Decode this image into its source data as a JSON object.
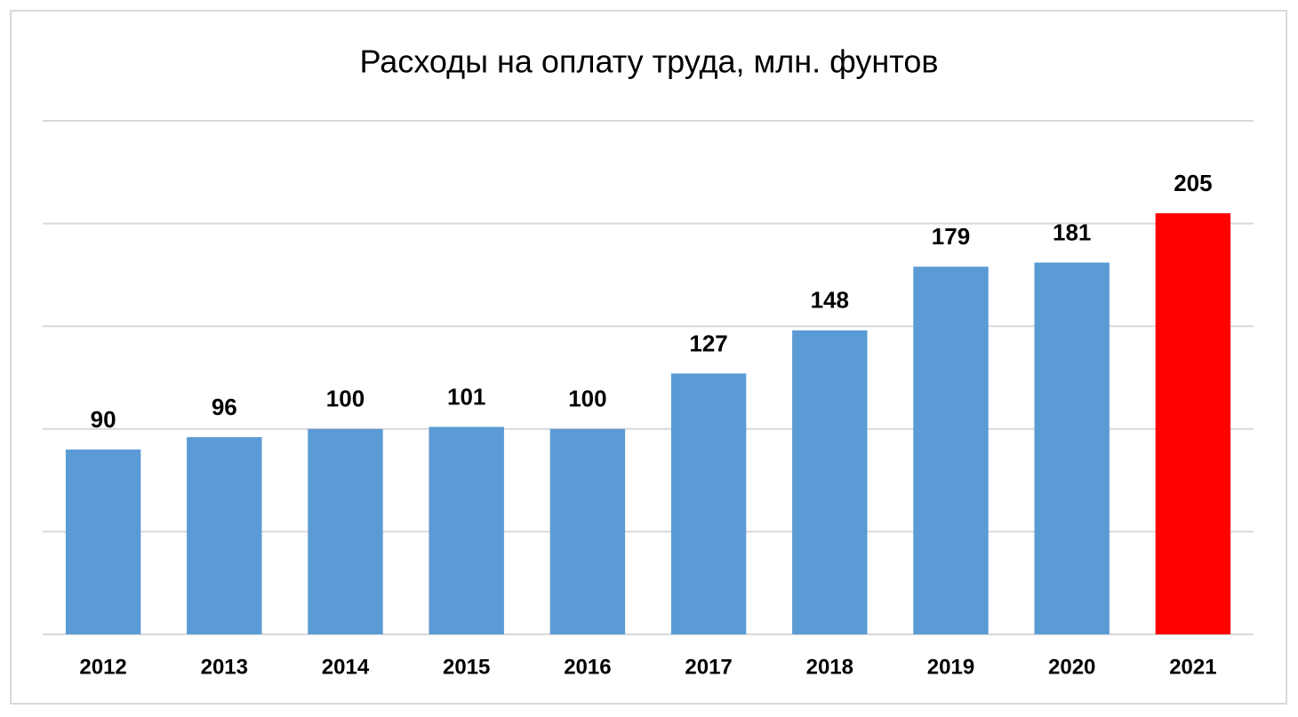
{
  "chart_data": {
    "type": "bar",
    "title": "Расходы на оплату труда, млн. фунтов",
    "categories": [
      "2012",
      "2013",
      "2014",
      "2015",
      "2016",
      "2017",
      "2018",
      "2019",
      "2020",
      "2021"
    ],
    "values": [
      90,
      96,
      100,
      101,
      100,
      127,
      148,
      179,
      181,
      205
    ],
    "colors": [
      "#5b9bd5",
      "#5b9bd5",
      "#5b9bd5",
      "#5b9bd5",
      "#5b9bd5",
      "#5b9bd5",
      "#5b9bd5",
      "#5b9bd5",
      "#5b9bd5",
      "#ff0000"
    ],
    "ylim": [
      0,
      250
    ],
    "yticks": [
      0,
      50,
      100,
      150,
      200,
      250
    ],
    "grid": true
  }
}
